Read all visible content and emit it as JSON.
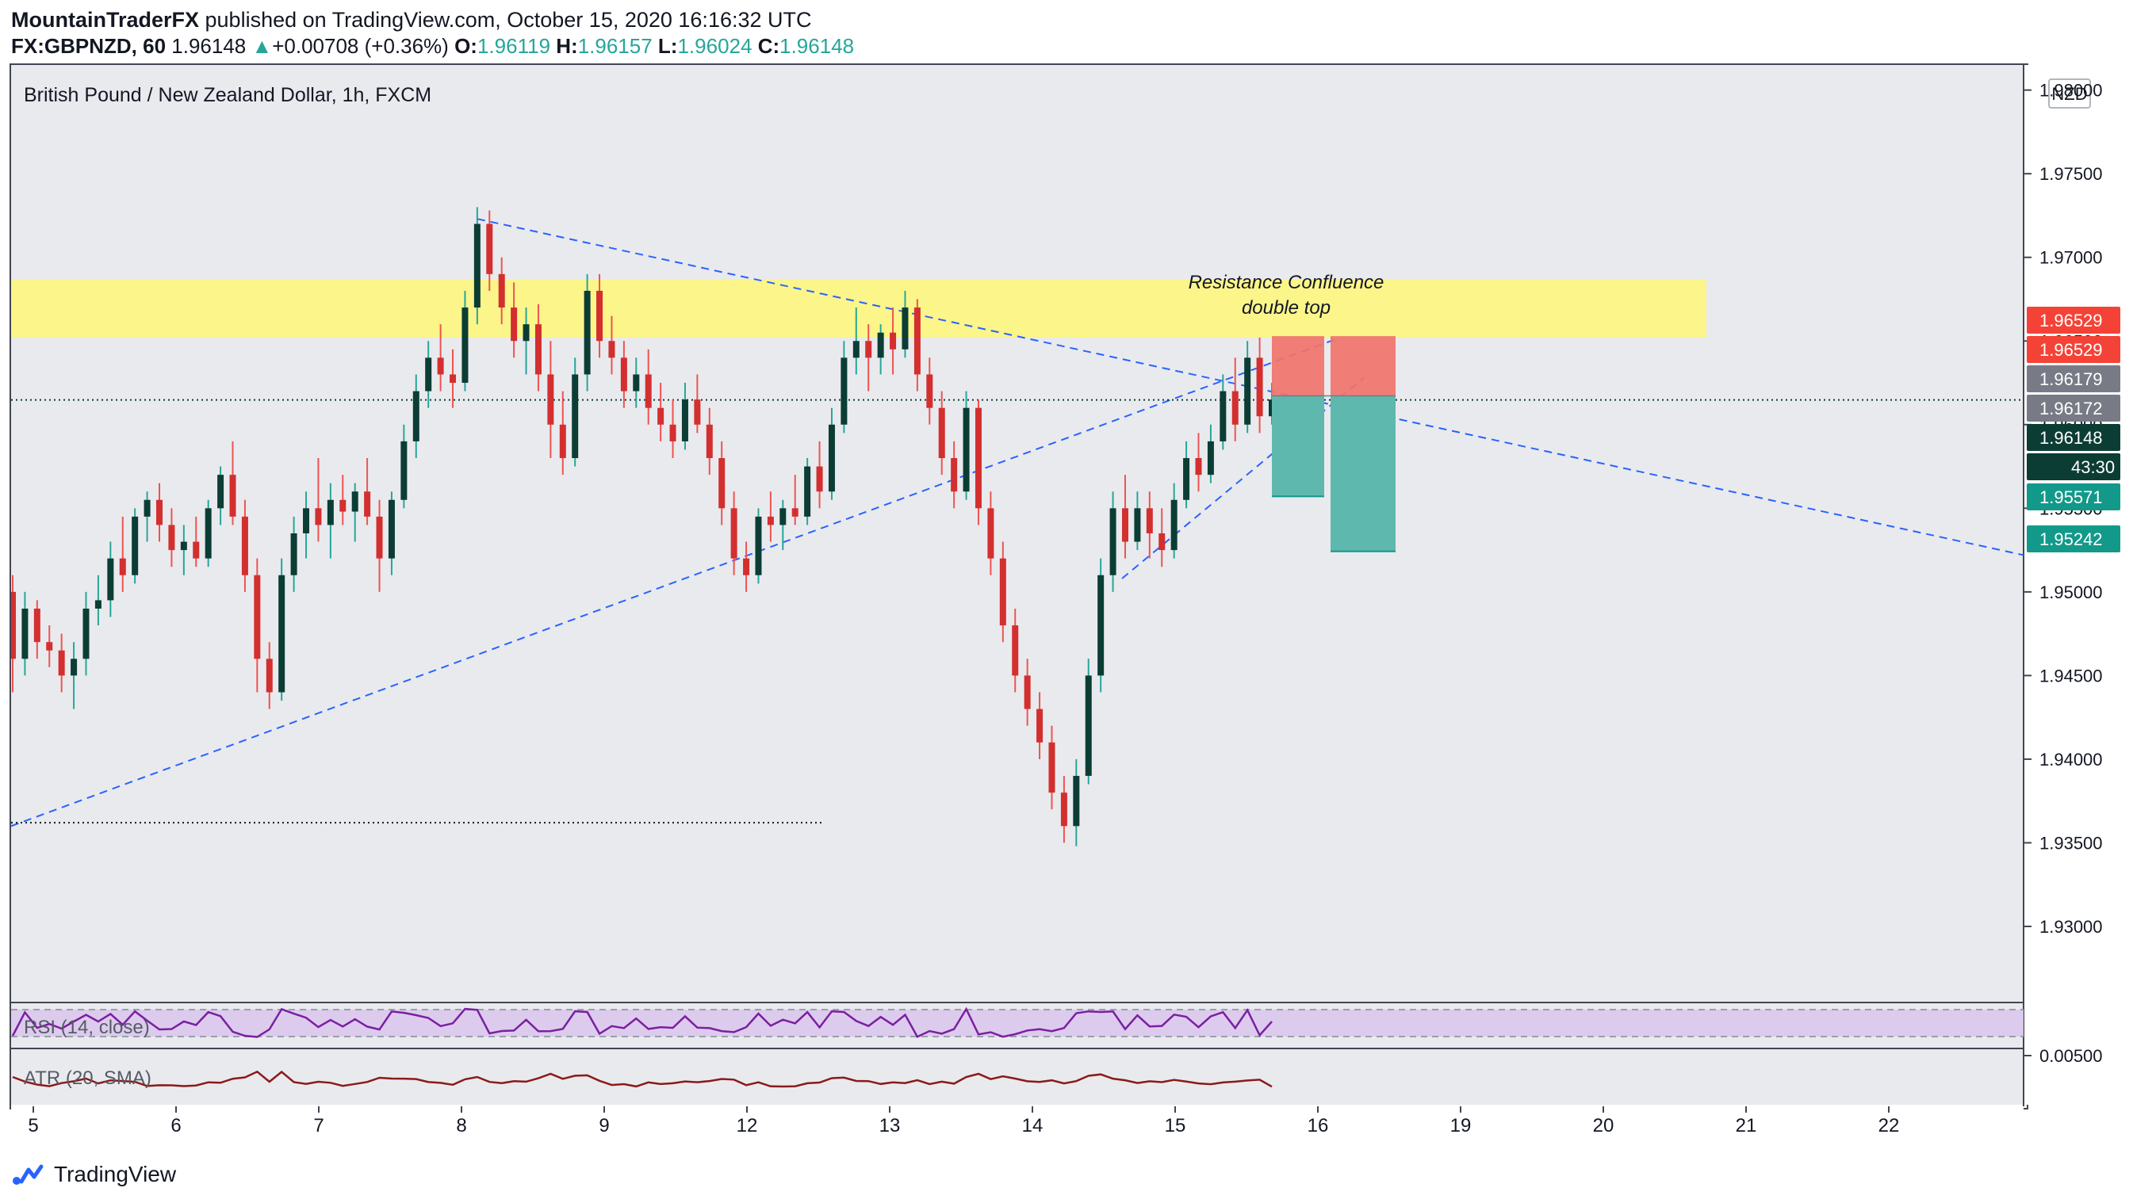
{
  "header": {
    "author": "MountainTraderFX",
    "published_text": " published on TradingView.com, October 15, 2020 16:16:32 UTC",
    "symbol": "FX:GBPNZD, 60",
    "last": "1.96148",
    "change_arrow": "▲",
    "change": "+0.00708 (+0.36%)",
    "o_label": "O:",
    "o": "1.96119",
    "h_label": "H:",
    "h": "1.96157",
    "l_label": "L:",
    "l": "1.96024",
    "c_label": "C:",
    "c": "1.96148"
  },
  "chart": {
    "legend": "British Pound / New Zealand Dollar, 1h, FXCM",
    "currency_badge": "NZD",
    "annotation_line1": "Resistance Confluence",
    "annotation_line2": "double top",
    "colors": {
      "up": "#26a69a",
      "up_body": "#0b3d34",
      "down": "#ef5350",
      "down_body": "#d32f2f",
      "zone": "#fbf58a",
      "trendline": "#2962ff",
      "price_tag_current": "#0b3d34",
      "price_tag_stop": "#f44336",
      "price_tag_target": "#12998a",
      "price_tag_grey": "#787b86"
    }
  },
  "chart_data": {
    "type": "candlestick",
    "title": "British Pound / New Zealand Dollar, 1h, FXCM",
    "y_ticks": [
      "1.98000",
      "1.97500",
      "1.97000",
      "1.96500",
      "1.96000",
      "1.95500",
      "1.95000",
      "1.94500",
      "1.94000",
      "1.93500",
      "1.93000"
    ],
    "ylim": [
      1.9255,
      1.9815
    ],
    "x_ticks": [
      "5",
      "6",
      "7",
      "8",
      "9",
      "12",
      "13",
      "14",
      "15",
      "16",
      "19",
      "20",
      "21",
      "22"
    ],
    "price_tags": [
      {
        "label": "1.96529",
        "role": "stop-upper",
        "value": 1.96529
      },
      {
        "label": "1.96529",
        "role": "stop",
        "value": 1.96529
      },
      {
        "label": "1.96179",
        "role": "grey",
        "value": 1.96179
      },
      {
        "label": "1.96172",
        "role": "grey",
        "value": 1.96172
      },
      {
        "label": "1.96148",
        "role": "current",
        "value": 1.96148
      },
      {
        "label": "43:30",
        "role": "countdown",
        "value": 1.959
      },
      {
        "label": "1.95571",
        "role": "target",
        "value": 1.95571
      },
      {
        "label": "1.95242",
        "role": "target",
        "value": 1.95242
      }
    ],
    "resistance_zone": [
      1.9652,
      1.9687
    ],
    "support_dotted_level": 1.9362,
    "current_price_line": 1.96148,
    "candles_ohlc": [
      [
        1.95,
        1.951,
        1.944,
        1.946
      ],
      [
        1.946,
        1.95,
        1.945,
        1.949
      ],
      [
        1.949,
        1.9495,
        1.946,
        1.947
      ],
      [
        1.947,
        1.948,
        1.9455,
        1.9465
      ],
      [
        1.9465,
        1.9475,
        1.944,
        1.945
      ],
      [
        1.945,
        1.947,
        1.943,
        1.946
      ],
      [
        1.946,
        1.95,
        1.945,
        1.949
      ],
      [
        1.949,
        1.951,
        1.948,
        1.9495
      ],
      [
        1.9495,
        1.953,
        1.9485,
        1.952
      ],
      [
        1.952,
        1.9545,
        1.95,
        1.951
      ],
      [
        1.951,
        1.955,
        1.9505,
        1.9545
      ],
      [
        1.9545,
        1.956,
        1.953,
        1.9555
      ],
      [
        1.9555,
        1.9565,
        1.953,
        1.954
      ],
      [
        1.954,
        1.955,
        1.9515,
        1.9525
      ],
      [
        1.9525,
        1.954,
        1.951,
        1.953
      ],
      [
        1.953,
        1.9545,
        1.9515,
        1.952
      ],
      [
        1.952,
        1.9555,
        1.9515,
        1.955
      ],
      [
        1.955,
        1.9575,
        1.954,
        1.957
      ],
      [
        1.957,
        1.959,
        1.954,
        1.9545
      ],
      [
        1.9545,
        1.9555,
        1.95,
        1.951
      ],
      [
        1.951,
        1.952,
        1.944,
        1.946
      ],
      [
        1.946,
        1.947,
        1.943,
        1.944
      ],
      [
        1.944,
        1.952,
        1.9435,
        1.951
      ],
      [
        1.951,
        1.9545,
        1.95,
        1.9535
      ],
      [
        1.9535,
        1.956,
        1.952,
        1.955
      ],
      [
        1.955,
        1.958,
        1.953,
        1.954
      ],
      [
        1.954,
        1.9565,
        1.952,
        1.9555
      ],
      [
        1.9555,
        1.957,
        1.954,
        1.9548
      ],
      [
        1.9548,
        1.9565,
        1.953,
        1.956
      ],
      [
        1.956,
        1.958,
        1.954,
        1.9545
      ],
      [
        1.9545,
        1.9555,
        1.95,
        1.952
      ],
      [
        1.952,
        1.956,
        1.951,
        1.9555
      ],
      [
        1.9555,
        1.96,
        1.955,
        1.959
      ],
      [
        1.959,
        1.963,
        1.958,
        1.962
      ],
      [
        1.962,
        1.965,
        1.961,
        1.964
      ],
      [
        1.964,
        1.966,
        1.962,
        1.963
      ],
      [
        1.963,
        1.9645,
        1.961,
        1.9625
      ],
      [
        1.9625,
        1.968,
        1.962,
        1.967
      ],
      [
        1.967,
        1.973,
        1.966,
        1.972
      ],
      [
        1.972,
        1.9728,
        1.968,
        1.969
      ],
      [
        1.969,
        1.97,
        1.966,
        1.967
      ],
      [
        1.967,
        1.9685,
        1.964,
        1.965
      ],
      [
        1.965,
        1.967,
        1.963,
        1.966
      ],
      [
        1.966,
        1.9672,
        1.962,
        1.963
      ],
      [
        1.963,
        1.965,
        1.958,
        1.96
      ],
      [
        1.96,
        1.962,
        1.957,
        1.958
      ],
      [
        1.958,
        1.964,
        1.9575,
        1.963
      ],
      [
        1.963,
        1.969,
        1.962,
        1.968
      ],
      [
        1.968,
        1.969,
        1.964,
        1.965
      ],
      [
        1.965,
        1.9665,
        1.963,
        1.964
      ],
      [
        1.964,
        1.965,
        1.961,
        1.962
      ],
      [
        1.962,
        1.964,
        1.961,
        1.963
      ],
      [
        1.963,
        1.9645,
        1.96,
        1.961
      ],
      [
        1.961,
        1.9625,
        1.959,
        1.96
      ],
      [
        1.96,
        1.9615,
        1.958,
        1.959
      ],
      [
        1.959,
        1.9625,
        1.9585,
        1.9615
      ],
      [
        1.9615,
        1.963,
        1.9595,
        1.96
      ],
      [
        1.96,
        1.961,
        1.957,
        1.958
      ],
      [
        1.958,
        1.959,
        1.954,
        1.955
      ],
      [
        1.955,
        1.956,
        1.951,
        1.952
      ],
      [
        1.952,
        1.953,
        1.95,
        1.951
      ],
      [
        1.951,
        1.955,
        1.9505,
        1.9545
      ],
      [
        1.9545,
        1.956,
        1.953,
        1.954
      ],
      [
        1.954,
        1.9555,
        1.9525,
        1.955
      ],
      [
        1.955,
        1.957,
        1.954,
        1.9545
      ],
      [
        1.9545,
        1.958,
        1.954,
        1.9575
      ],
      [
        1.9575,
        1.959,
        1.955,
        1.956
      ],
      [
        1.956,
        1.961,
        1.9555,
        1.96
      ],
      [
        1.96,
        1.965,
        1.9595,
        1.964
      ],
      [
        1.964,
        1.967,
        1.963,
        1.965
      ],
      [
        1.965,
        1.966,
        1.962,
        1.964
      ],
      [
        1.964,
        1.966,
        1.963,
        1.9655
      ],
      [
        1.9655,
        1.967,
        1.963,
        1.9645
      ],
      [
        1.9645,
        1.968,
        1.964,
        1.967
      ],
      [
        1.967,
        1.9675,
        1.962,
        1.963
      ],
      [
        1.963,
        1.964,
        1.96,
        1.961
      ],
      [
        1.961,
        1.962,
        1.957,
        1.958
      ],
      [
        1.958,
        1.959,
        1.955,
        1.956
      ],
      [
        1.956,
        1.962,
        1.9555,
        1.961
      ],
      [
        1.961,
        1.9615,
        1.954,
        1.955
      ],
      [
        1.955,
        1.956,
        1.951,
        1.952
      ],
      [
        1.952,
        1.953,
        1.947,
        1.948
      ],
      [
        1.948,
        1.949,
        1.944,
        1.945
      ],
      [
        1.945,
        1.946,
        1.942,
        1.943
      ],
      [
        1.943,
        1.944,
        1.94,
        1.941
      ],
      [
        1.941,
        1.942,
        1.937,
        1.938
      ],
      [
        1.938,
        1.939,
        1.935,
        1.936
      ],
      [
        1.936,
        1.94,
        1.9348,
        1.939
      ],
      [
        1.939,
        1.946,
        1.9385,
        1.945
      ],
      [
        1.945,
        1.952,
        1.944,
        1.951
      ],
      [
        1.951,
        1.956,
        1.95,
        1.955
      ],
      [
        1.955,
        1.957,
        1.952,
        1.953
      ],
      [
        1.953,
        1.956,
        1.9525,
        1.955
      ],
      [
        1.955,
        1.956,
        1.952,
        1.9535
      ],
      [
        1.9535,
        1.955,
        1.9515,
        1.9525
      ],
      [
        1.9525,
        1.9565,
        1.952,
        1.9555
      ],
      [
        1.9555,
        1.959,
        1.955,
        1.958
      ],
      [
        1.958,
        1.9595,
        1.956,
        1.957
      ],
      [
        1.957,
        1.96,
        1.9565,
        1.959
      ],
      [
        1.959,
        1.963,
        1.9585,
        1.962
      ],
      [
        1.962,
        1.964,
        1.959,
        1.96
      ],
      [
        1.96,
        1.965,
        1.9595,
        1.964
      ],
      [
        1.964,
        1.9652,
        1.9595,
        1.9605
      ],
      [
        1.9605,
        1.9625,
        1.96,
        1.9615
      ]
    ]
  },
  "indicators": {
    "rsi": {
      "label": "RSI (14, close)"
    },
    "atr": {
      "label": "ATR (20, SMA)",
      "tick": "0.00500"
    }
  },
  "footer": {
    "brand": "TradingView"
  }
}
